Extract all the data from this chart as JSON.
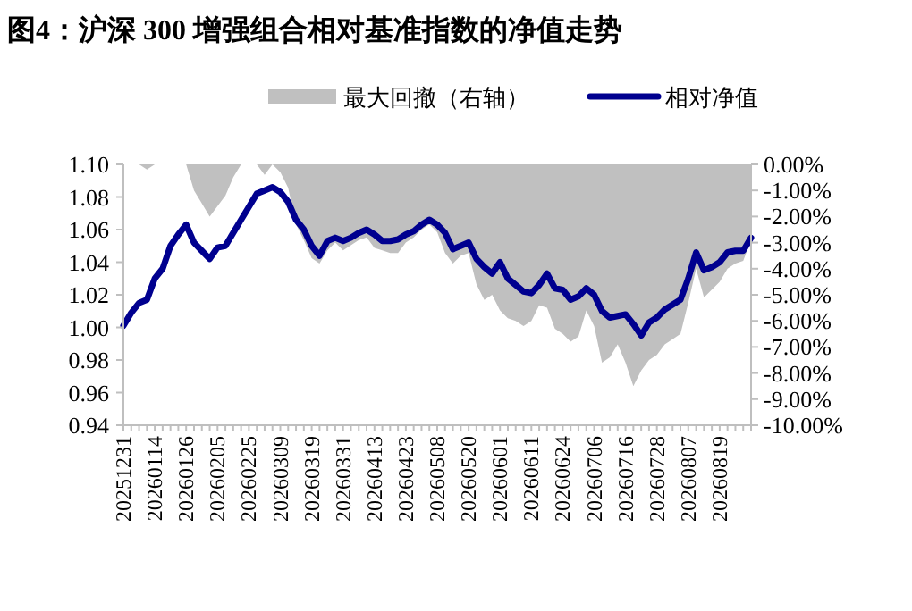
{
  "chart_data": {
    "type": "line",
    "title": "图4：沪深 300 增强组合相对基准指数的净值走势",
    "categories": [
      "20251231",
      null,
      null,
      null,
      "20260114",
      null,
      null,
      null,
      "20260126",
      null,
      null,
      null,
      "20260205",
      null,
      null,
      null,
      "20260225",
      null,
      null,
      null,
      "20260309",
      null,
      null,
      null,
      "20260319",
      null,
      null,
      null,
      "20260331",
      null,
      null,
      null,
      "20260413",
      null,
      null,
      null,
      "20260423",
      null,
      null,
      null,
      "20260508",
      null,
      null,
      null,
      "20260520",
      null,
      null,
      null,
      "20260601",
      null,
      null,
      null,
      "20260611",
      null,
      null,
      null,
      "20260624",
      null,
      null,
      null,
      "20260706",
      null,
      null,
      null,
      "20260716",
      null,
      null,
      null,
      "20260728",
      null,
      null,
      null,
      "20260807",
      null,
      null,
      null,
      "20260819",
      null,
      null,
      null,
      null
    ],
    "series": [
      {
        "name": "最大回撤（右轴）",
        "type": "area",
        "axis": "y2",
        "color": "#c0c0c0",
        "values": [
          0,
          0,
          0,
          -0.2,
          0,
          0,
          0,
          0,
          0,
          -1.0,
          -1.5,
          -2.0,
          -1.6,
          -1.2,
          -0.5,
          0,
          0,
          0,
          -0.4,
          0,
          -0.3,
          -0.9,
          -2.3,
          -2.9,
          -3.6,
          -3.8,
          -3.3,
          -3.0,
          -3.3,
          -3.1,
          -2.9,
          -2.8,
          -3.2,
          -3.3,
          -3.4,
          -3.4,
          -3.0,
          -2.8,
          -2.5,
          -2.3,
          -2.6,
          -3.4,
          -3.8,
          -3.5,
          -3.4,
          -4.6,
          -5.2,
          -5.0,
          -5.6,
          -5.9,
          -6.0,
          -6.2,
          -6.0,
          -5.4,
          -5.5,
          -6.3,
          -6.5,
          -6.8,
          -6.6,
          -5.6,
          -6.2,
          -7.6,
          -7.4,
          -6.9,
          -7.6,
          -8.5,
          -7.9,
          -7.5,
          -7.3,
          -6.9,
          -6.7,
          -6.5,
          -5.3,
          -4.0,
          -5.1,
          -4.8,
          -4.5,
          -4.0,
          -3.8,
          -3.7,
          -2.9
        ]
      },
      {
        "name": "相对净值",
        "type": "line",
        "axis": "y",
        "color": "#00008f",
        "values": [
          1.001,
          1.009,
          1.015,
          1.017,
          1.03,
          1.036,
          1.05,
          1.057,
          1.063,
          1.052,
          1.047,
          1.042,
          1.049,
          1.05,
          1.058,
          1.066,
          1.074,
          1.082,
          1.084,
          1.086,
          1.083,
          1.077,
          1.066,
          1.06,
          1.05,
          1.044,
          1.053,
          1.055,
          1.053,
          1.055,
          1.058,
          1.06,
          1.057,
          1.053,
          1.053,
          1.054,
          1.057,
          1.059,
          1.063,
          1.066,
          1.063,
          1.058,
          1.048,
          1.05,
          1.052,
          1.042,
          1.037,
          1.033,
          1.04,
          1.03,
          1.026,
          1.022,
          1.021,
          1.026,
          1.033,
          1.024,
          1.023,
          1.017,
          1.019,
          1.024,
          1.02,
          1.01,
          1.006,
          1.007,
          1.008,
          1.002,
          0.995,
          1.003,
          1.006,
          1.011,
          1.014,
          1.017,
          1.03,
          1.046,
          1.035,
          1.037,
          1.04,
          1.046,
          1.047,
          1.047,
          1.055
        ]
      }
    ],
    "ylim": [
      0.94,
      1.1
    ],
    "yticks": [
      {
        "value": 0.94,
        "label": "0.94"
      },
      {
        "value": 0.96,
        "label": "0.96"
      },
      {
        "value": 0.98,
        "label": "0.98"
      },
      {
        "value": 1.0,
        "label": "1.00"
      },
      {
        "value": 1.02,
        "label": "1.02"
      },
      {
        "value": 1.04,
        "label": "1.04"
      },
      {
        "value": 1.06,
        "label": "1.06"
      },
      {
        "value": 1.08,
        "label": "1.08"
      },
      {
        "value": 1.1,
        "label": "1.10"
      }
    ],
    "y2lim": [
      -10,
      0
    ],
    "y2ticks": [
      {
        "value": 0,
        "label": "0.00%"
      },
      {
        "value": -1,
        "label": "-1.00%"
      },
      {
        "value": -2,
        "label": "-2.00%"
      },
      {
        "value": -3,
        "label": "-3.00%"
      },
      {
        "value": -4,
        "label": "-4.00%"
      },
      {
        "value": -5,
        "label": "-5.00%"
      },
      {
        "value": -6,
        "label": "-6.00%"
      },
      {
        "value": -7,
        "label": "-7.00%"
      },
      {
        "value": -8,
        "label": "-8.00%"
      },
      {
        "value": -9,
        "label": "-9.00%"
      },
      {
        "value": -10,
        "label": "-10.00%"
      }
    ],
    "legend": "top",
    "grid": false
  }
}
